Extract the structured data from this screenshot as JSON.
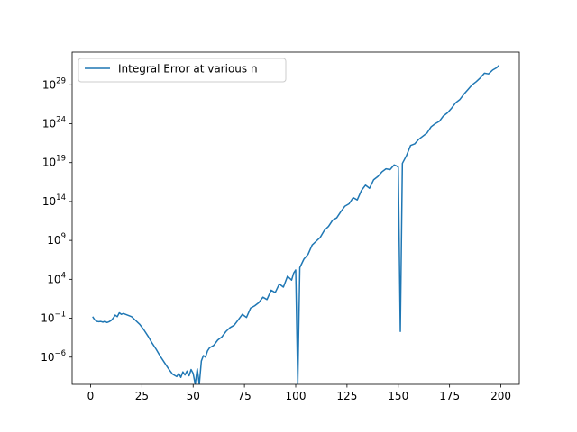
{
  "chart_data": {
    "type": "line",
    "title": "",
    "xlabel": "",
    "ylabel": "",
    "yscale": "log",
    "xlim": [
      -9,
      209
    ],
    "ylim_log10": [
      -9.5,
      33.2
    ],
    "xticks": [
      0,
      25,
      50,
      75,
      100,
      125,
      150,
      175,
      200
    ],
    "xtick_labels": [
      "0",
      "25",
      "50",
      "75",
      "100",
      "125",
      "150",
      "175",
      "200"
    ],
    "yticks": [
      {
        "base": "10",
        "exp": "−6",
        "log10": -6
      },
      {
        "base": "10",
        "exp": "−1",
        "log10": -1
      },
      {
        "base": "10",
        "exp": "4",
        "log10": 4
      },
      {
        "base": "10",
        "exp": "9",
        "log10": 9
      },
      {
        "base": "10",
        "exp": "14",
        "log10": 14
      },
      {
        "base": "10",
        "exp": "19",
        "log10": 19
      },
      {
        "base": "10",
        "exp": "24",
        "log10": 24
      },
      {
        "base": "10",
        "exp": "29",
        "log10": 29
      }
    ],
    "grid": false,
    "legend_position": "upper-left",
    "series": [
      {
        "name": "Integral Error at various n",
        "color": "#1f77b4",
        "x": [
          1,
          2,
          3,
          4,
          5,
          6,
          7,
          8,
          9,
          10,
          11,
          12,
          13,
          14,
          15,
          16,
          17,
          18,
          19,
          20,
          22,
          24,
          26,
          28,
          30,
          32,
          34,
          36,
          38,
          40,
          42,
          43,
          44,
          45,
          46,
          47,
          48,
          49,
          50,
          51,
          52,
          53,
          54,
          55,
          56,
          57,
          58,
          60,
          62,
          64,
          66,
          68,
          70,
          72,
          74,
          76,
          78,
          80,
          82,
          84,
          86,
          88,
          90,
          92,
          94,
          96,
          98,
          99,
          100,
          101,
          102,
          104,
          106,
          108,
          110,
          112,
          114,
          116,
          118,
          120,
          122,
          124,
          126,
          128,
          130,
          132,
          134,
          136,
          138,
          140,
          142,
          144,
          146,
          148,
          149,
          150,
          151,
          152,
          154,
          156,
          158,
          160,
          162,
          164,
          166,
          168,
          170,
          172,
          174,
          176,
          178,
          180,
          182,
          184,
          186,
          188,
          190,
          192,
          194,
          196,
          198,
          199
        ],
        "log10_y": [
          -0.8,
          -1.2,
          -1.4,
          -1.45,
          -1.42,
          -1.5,
          -1.4,
          -1.55,
          -1.45,
          -1.3,
          -1.0,
          -0.6,
          -0.8,
          -0.3,
          -0.5,
          -0.4,
          -0.5,
          -0.6,
          -0.7,
          -0.8,
          -1.3,
          -1.8,
          -2.5,
          -3.3,
          -4.2,
          -5.0,
          -5.9,
          -6.7,
          -7.5,
          -8.2,
          -8.5,
          -8.1,
          -8.6,
          -7.9,
          -8.3,
          -7.8,
          -8.4,
          -7.6,
          -8.1,
          -9.5,
          -7.5,
          -9.5,
          -6.5,
          -5.8,
          -6.0,
          -5.2,
          -4.8,
          -4.5,
          -3.8,
          -3.4,
          -2.7,
          -2.2,
          -1.9,
          -1.2,
          -0.5,
          -0.9,
          0.3,
          0.6,
          1.0,
          1.7,
          1.4,
          2.6,
          2.3,
          3.4,
          3.0,
          4.4,
          3.9,
          4.8,
          5.2,
          -9.5,
          5.5,
          6.6,
          7.2,
          8.4,
          8.9,
          9.4,
          10.3,
          10.8,
          11.6,
          11.9,
          12.7,
          13.4,
          13.7,
          14.5,
          14.2,
          15.4,
          16.1,
          15.7,
          16.8,
          17.2,
          17.8,
          18.2,
          18.1,
          18.7,
          18.6,
          18.4,
          -2.7,
          18.9,
          19.9,
          21.2,
          21.4,
          22.0,
          22.4,
          22.8,
          23.6,
          24.0,
          24.3,
          25.0,
          25.4,
          26.0,
          26.7,
          27.1,
          27.8,
          28.4,
          29.0,
          29.4,
          29.9,
          30.5,
          30.4,
          30.9,
          31.2,
          31.5
        ]
      }
    ]
  }
}
